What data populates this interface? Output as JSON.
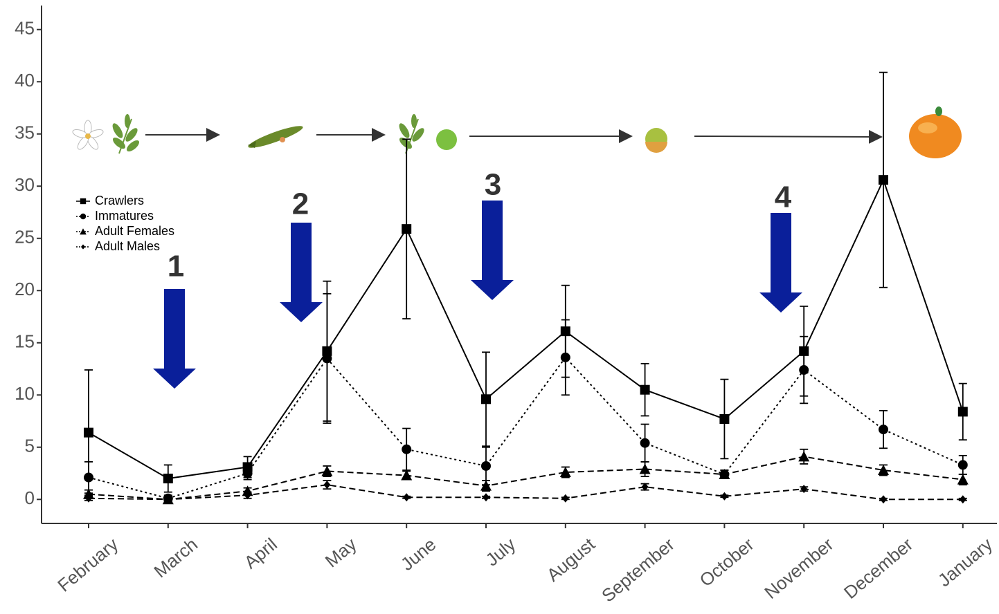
{
  "chart_data": {
    "type": "line",
    "categories": [
      "February",
      "March",
      "April",
      "May",
      "June",
      "July",
      "August",
      "September",
      "October",
      "November",
      "December",
      "January"
    ],
    "series": [
      {
        "name": "Crawlers",
        "color": "#000000",
        "marker": "square",
        "dash": "solid",
        "values": [
          6.4,
          2.0,
          3.1,
          14.2,
          25.9,
          9.6,
          16.1,
          10.5,
          7.7,
          14.2,
          30.6,
          8.4
        ],
        "errors": [
          6.0,
          1.3,
          1.0,
          6.7,
          8.6,
          4.5,
          4.4,
          2.5,
          3.8,
          4.3,
          10.3,
          2.7
        ]
      },
      {
        "name": "Immatures",
        "color": "#000000",
        "marker": "circle",
        "dash": "dotted",
        "values": [
          2.1,
          0.1,
          2.5,
          13.5,
          4.8,
          3.2,
          13.6,
          5.4,
          2.4,
          12.4,
          6.7,
          3.3
        ],
        "errors": [
          1.5,
          0.3,
          0.6,
          6.2,
          2.0,
          1.8,
          3.6,
          1.8,
          0.4,
          3.2,
          1.8,
          0.9
        ]
      },
      {
        "name": "Adult Females",
        "color": "#000000",
        "marker": "triangle",
        "dash": "dashed",
        "values": [
          0.5,
          0.0,
          0.8,
          2.7,
          2.3,
          1.3,
          2.6,
          2.9,
          2.4,
          4.1,
          2.8,
          1.9
        ],
        "errors": [
          0.4,
          0.2,
          0.3,
          0.5,
          0.4,
          0.5,
          0.5,
          0.7,
          0.4,
          0.7,
          0.5,
          0.5
        ]
      },
      {
        "name": "Adult Males",
        "color": "#000000",
        "marker": "diamond",
        "dash": "dashed",
        "values": [
          0.1,
          0.0,
          0.4,
          1.4,
          0.2,
          0.2,
          0.1,
          1.2,
          0.3,
          1.0,
          0.0,
          0.0
        ],
        "errors": [
          0.2,
          0.1,
          0.3,
          0.4,
          0.1,
          0.1,
          0.1,
          0.3,
          0.1,
          0.2,
          0.1,
          0.1
        ]
      }
    ],
    "ylim": [
      -2.3,
      47.3
    ],
    "yticks": [
      0,
      5,
      10,
      15,
      20,
      25,
      30,
      35,
      40,
      45
    ],
    "grid": false,
    "legend": "upper left",
    "annotations": [
      "1",
      "2",
      "3",
      "4"
    ]
  }
}
